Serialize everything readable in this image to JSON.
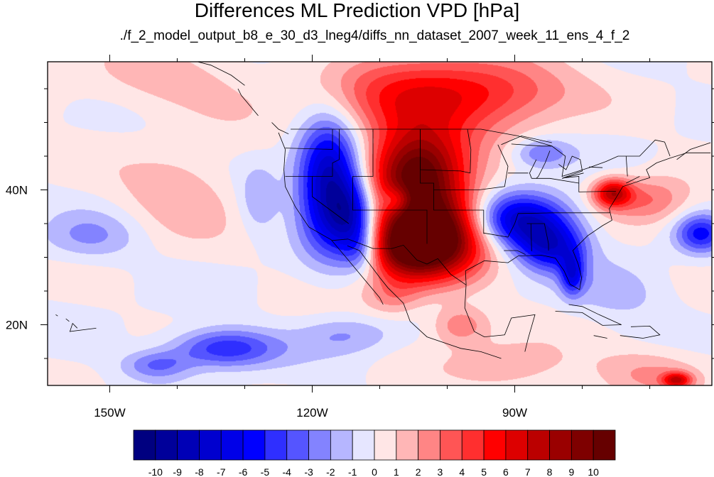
{
  "title": "Differences ML Prediction VPD [hPa]",
  "subtitle": "./f_2_model_output_b8_e_30_d3_lneg4/diffs_nn_dataset_2007_week_11_ens_4_f_2",
  "chart_data": {
    "type": "heatmap",
    "title": "Differences ML Prediction VPD [hPa]",
    "x_axis": {
      "range": [
        -159.2,
        -60.8
      ],
      "ticks": [
        -150,
        -120,
        -90
      ],
      "tick_labels": [
        "150W",
        "120W",
        "90W"
      ],
      "minor_step": 10
    },
    "y_axis": {
      "range": [
        11.0,
        59.0
      ],
      "ticks": [
        20,
        40
      ],
      "tick_labels": [
        "20N",
        "40N"
      ],
      "minor_step": 5
    },
    "colorbar": {
      "levels": [
        "-10",
        "-9",
        "-8",
        "-7",
        "-6",
        "-5",
        "-4",
        "-3",
        "-2",
        "-1",
        "0",
        "1",
        "2",
        "3",
        "4",
        "5",
        "6",
        "7",
        "8",
        "9",
        "10"
      ],
      "colors": [
        "#000080",
        "#00009a",
        "#0000b6",
        "#0000cf",
        "#0000e8",
        "#0000ff",
        "#2f2fff",
        "#5555ff",
        "#8383ff",
        "#b6b6ff",
        "#e6e6ff",
        "#ffe6e6",
        "#ffb6b6",
        "#ff8585",
        "#ff5555",
        "#ff2f2f",
        "#ff0000",
        "#dd0000",
        "#bb0000",
        "#9a0000",
        "#7e0000",
        "#660000"
      ]
    },
    "field_anomalies": [
      {
        "lon": -117.5,
        "lat": 41.0,
        "value": -9,
        "sx": 3.2,
        "sy": 6.5
      },
      {
        "lon": -114.0,
        "lat": 36.0,
        "value": -6,
        "sx": 2.5,
        "sy": 4.0
      },
      {
        "lon": -112.5,
        "lat": 31.0,
        "value": -3,
        "sx": 2.0,
        "sy": 2.5
      },
      {
        "lon": -104.5,
        "lat": 42.5,
        "value": 10,
        "sx": 5.0,
        "sy": 4.5
      },
      {
        "lon": -101.0,
        "lat": 33.5,
        "value": 10,
        "sx": 5.0,
        "sy": 4.5
      },
      {
        "lon": -106.5,
        "lat": 31.5,
        "value": 8,
        "sx": 4.5,
        "sy": 3.5
      },
      {
        "lon": -107.5,
        "lat": 38.5,
        "value": -3,
        "sx": 1.5,
        "sy": 1.4
      },
      {
        "lon": -105.0,
        "lat": 53.0,
        "value": 5,
        "sx": 9.0,
        "sy": 4.5
      },
      {
        "lon": -92.5,
        "lat": 55.0,
        "value": 3.5,
        "sx": 8.0,
        "sy": 3.5
      },
      {
        "lon": -89.0,
        "lat": 35.5,
        "value": -8,
        "sx": 5.0,
        "sy": 2.8
      },
      {
        "lon": -84.5,
        "lat": 31.5,
        "value": -6,
        "sx": 3.5,
        "sy": 2.5
      },
      {
        "lon": -81.5,
        "lat": 27.5,
        "value": -5,
        "sx": 1.2,
        "sy": 2.2
      },
      {
        "lon": -86.0,
        "lat": 45.5,
        "value": -3,
        "sx": 3.0,
        "sy": 1.5
      },
      {
        "lon": -75.5,
        "lat": 39.5,
        "value": 7,
        "sx": 2.0,
        "sy": 1.5
      },
      {
        "lon": -70.0,
        "lat": 38.5,
        "value": 3,
        "sx": 4.0,
        "sy": 2.5
      },
      {
        "lon": -62.5,
        "lat": 33.5,
        "value": -5,
        "sx": 2.5,
        "sy": 2.0
      },
      {
        "lon": -133.0,
        "lat": 16.5,
        "value": -5,
        "sx": 5.5,
        "sy": 2.0
      },
      {
        "lon": -143.0,
        "lat": 14.0,
        "value": -3,
        "sx": 3.5,
        "sy": 1.5
      },
      {
        "lon": -115.0,
        "lat": 18.5,
        "value": -2,
        "sx": 5.0,
        "sy": 2.0
      },
      {
        "lon": -139.5,
        "lat": 39.5,
        "value": 2,
        "sx": 6.0,
        "sy": 4.0
      },
      {
        "lon": -128.0,
        "lat": 38.5,
        "value": -2,
        "sx": 2.0,
        "sy": 3.5
      },
      {
        "lon": -153.0,
        "lat": 33.0,
        "value": -2,
        "sx": 5.0,
        "sy": 2.5
      },
      {
        "lon": -98.0,
        "lat": 20.0,
        "value": 3,
        "sx": 3.0,
        "sy": 2.0
      },
      {
        "lon": -90.0,
        "lat": 14.0,
        "value": 2,
        "sx": 6.0,
        "sy": 2.5
      },
      {
        "lon": -70.0,
        "lat": 13.0,
        "value": 2,
        "sx": 6.0,
        "sy": 2.5
      },
      {
        "lon": -66.0,
        "lat": 11.8,
        "value": 6,
        "sx": 1.5,
        "sy": 0.8
      },
      {
        "lon": -108.0,
        "lat": 24.0,
        "value": 2,
        "sx": 3.0,
        "sy": 2.0
      },
      {
        "lon": -140.0,
        "lat": 56.0,
        "value": 1.5,
        "sx": 10.0,
        "sy": 3.5
      },
      {
        "lon": -75.0,
        "lat": 25.0,
        "value": -1.5,
        "sx": 6.0,
        "sy": 3.0
      }
    ]
  }
}
